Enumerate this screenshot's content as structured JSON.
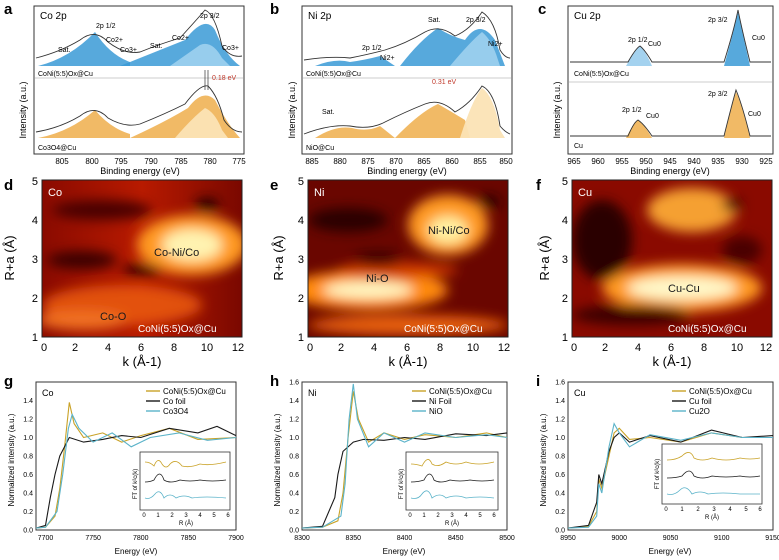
{
  "panels": {
    "a": {
      "letter": "a",
      "tag": "Co 2p",
      "ylabel": "Intensity (a.u.)",
      "xlabel": "Binding energy (eV)",
      "ticks": [
        "805",
        "800",
        "795",
        "790",
        "785",
        "780",
        "775"
      ],
      "top_sample": "CoNi(5:5)Ox@Cu",
      "bottom_sample": "Co3O4@Cu",
      "shift": "0.18 eV",
      "peaks": [
        "Sat.",
        "2p 1/2",
        "Co2+",
        "Co3+",
        "Sat.",
        "Co2+",
        "2p 3/2",
        "Co3+"
      ]
    },
    "b": {
      "letter": "b",
      "tag": "Ni 2p",
      "ylabel": "Intensity (a.u.)",
      "xlabel": "Binding energy (eV)",
      "ticks": [
        "885",
        "880",
        "875",
        "870",
        "865",
        "860",
        "855",
        "850"
      ],
      "top_sample": "CoNi(5:5)Ox@Cu",
      "bottom_sample": "NiO@Cu",
      "shift": "0.31 eV",
      "peaks": [
        "Sat.",
        "2p 1/2",
        "Ni2+",
        "Sat.",
        "2p 3/2",
        "Ni2+"
      ]
    },
    "c": {
      "letter": "c",
      "tag": "Cu 2p",
      "ylabel": "Intensity (a.u.)",
      "xlabel": "Binding energy (eV)",
      "ticks": [
        "965",
        "960",
        "955",
        "950",
        "945",
        "940",
        "935",
        "930",
        "925"
      ],
      "top_sample": "CoNi(5:5)Ox@Cu",
      "bottom_sample": "Cu",
      "peaks": [
        "2p 1/2",
        "Cu0",
        "2p 3/2",
        "Cu0"
      ]
    },
    "d": {
      "letter": "d",
      "tag": "Co",
      "ann1": "Co-Ni/Co",
      "ann2": "Co-O",
      "sample": "CoNi(5:5)Ox@Cu"
    },
    "e": {
      "letter": "e",
      "tag": "Ni",
      "ann1": "Ni-Ni/Co",
      "ann2": "Ni-O",
      "sample": "CoNi(5:5)Ox@Cu"
    },
    "f": {
      "letter": "f",
      "tag": "Cu",
      "ann1": "Cu-Cu",
      "sample": "CoNi(5:5)Ox@Cu"
    },
    "g": {
      "letter": "g",
      "tag": "Co",
      "ylabel": "Normalized intensity (a.u.)",
      "xlabel": "Energy (eV)",
      "legend": [
        "CoNi(5:5)Ox@Cu",
        "Co foil",
        "Co3O4"
      ]
    },
    "h": {
      "letter": "h",
      "tag": "Ni",
      "ylabel": "Normalized intensity (a.u.)",
      "xlabel": "Energy (eV)",
      "legend": [
        "CoNi(5:5)Ox@Cu",
        "Ni Foil",
        "NiO"
      ]
    },
    "i": {
      "letter": "i",
      "tag": "Cu",
      "ylabel": "Normalized intensity (a.u.)",
      "xlabel": "Energy (eV)",
      "legend": [
        "CoNi(5:5)Ox@Cu",
        "Cu foil",
        "Cu2O"
      ]
    }
  },
  "wt_axes": {
    "ylabel": "R+a (Å)",
    "xlabel": "k (Å-1)",
    "xticks": [
      "0",
      "2",
      "4",
      "6",
      "8",
      "10",
      "12"
    ],
    "yticks": [
      "1",
      "2",
      "3",
      "4",
      "5"
    ]
  },
  "inset": {
    "ylabel": "FT of k²c(k)",
    "xlabel": "R (Å)",
    "ticks": [
      "0",
      "1",
      "2",
      "3",
      "4",
      "5",
      "6"
    ]
  },
  "colors": {
    "sample": "#c9a227",
    "foil": "#1a1a1a",
    "oxide": "#5bb3c9",
    "blue_fill": "#3a9ad6",
    "orange_fill": "#f0b355"
  },
  "chart_data": [
    {
      "panel": "a",
      "type": "line",
      "title": "Co 2p",
      "xlabel": "Binding energy (eV)",
      "ylabel": "Intensity (a.u.)",
      "xlim": [
        805,
        775
      ],
      "series": [
        {
          "name": "CoNi(5:5)Ox@Cu",
          "x": [
            805,
            802,
            800,
            797,
            795,
            792,
            789,
            786,
            783,
            781,
            780,
            778,
            775
          ],
          "values": [
            0.3,
            0.45,
            0.55,
            0.7,
            0.55,
            0.45,
            0.5,
            0.6,
            0.8,
            1.0,
            0.95,
            0.5,
            0.35
          ]
        },
        {
          "name": "Co3O4@Cu",
          "x": [
            805,
            802,
            800,
            797,
            795,
            792,
            789,
            786,
            783,
            781,
            780,
            778,
            775
          ],
          "values": [
            0.2,
            0.3,
            0.35,
            0.55,
            0.4,
            0.3,
            0.35,
            0.45,
            0.6,
            0.85,
            0.9,
            0.4,
            0.2
          ]
        }
      ]
    },
    {
      "panel": "b",
      "type": "line",
      "title": "Ni 2p",
      "xlabel": "Binding energy (eV)",
      "ylabel": "Intensity (a.u.)",
      "xlim": [
        885,
        850
      ],
      "series": [
        {
          "name": "CoNi(5:5)Ox@Cu",
          "x": [
            885,
            880,
            876,
            873,
            870,
            866,
            862,
            858,
            856,
            854,
            850
          ],
          "values": [
            0.3,
            0.4,
            0.4,
            0.5,
            0.45,
            0.6,
            0.9,
            0.8,
            0.95,
            0.6,
            0.35
          ]
        },
        {
          "name": "NiO@Cu",
          "x": [
            885,
            880,
            876,
            873,
            870,
            866,
            862,
            858,
            856,
            854,
            850
          ],
          "values": [
            0.2,
            0.35,
            0.3,
            0.4,
            0.3,
            0.45,
            0.75,
            0.55,
            0.9,
            0.5,
            0.2
          ]
        }
      ]
    },
    {
      "panel": "c",
      "type": "line",
      "title": "Cu 2p",
      "xlabel": "Binding energy (eV)",
      "ylabel": "Intensity (a.u.)",
      "xlim": [
        965,
        925
      ],
      "series": [
        {
          "name": "CoNi(5:5)Ox@Cu",
          "x": [
            965,
            955,
            952,
            949,
            940,
            934,
            932,
            930,
            925
          ],
          "values": [
            0.35,
            0.35,
            0.55,
            0.4,
            0.4,
            0.4,
            1.0,
            0.45,
            0.4
          ]
        },
        {
          "name": "Cu",
          "x": [
            965,
            955,
            952,
            949,
            940,
            934,
            932,
            930,
            925
          ],
          "values": [
            0.2,
            0.2,
            0.4,
            0.25,
            0.25,
            0.25,
            0.85,
            0.3,
            0.25
          ]
        }
      ]
    },
    {
      "panel": "d",
      "type": "heatmap",
      "title": "Co",
      "xlabel": "k (Å-1)",
      "ylabel": "R+a (Å)",
      "xlim": [
        0,
        12
      ],
      "ylim": [
        1,
        5
      ]
    },
    {
      "panel": "e",
      "type": "heatmap",
      "title": "Ni",
      "xlabel": "k (Å-1)",
      "ylabel": "R+a (Å)",
      "xlim": [
        0,
        12
      ],
      "ylim": [
        1,
        5
      ]
    },
    {
      "panel": "f",
      "type": "heatmap",
      "title": "Cu",
      "xlabel": "k (Å-1)",
      "ylabel": "R+a (Å)",
      "xlim": [
        0,
        12
      ],
      "ylim": [
        1,
        5
      ]
    },
    {
      "panel": "g",
      "type": "line",
      "title": "Co",
      "xlabel": "Energy (eV)",
      "ylabel": "Normalized intensity (a.u.)",
      "xlim": [
        7690,
        7900
      ],
      "ylim": [
        0,
        1.6
      ],
      "xticks": [
        "7700",
        "7750",
        "7800",
        "7850",
        "7900"
      ],
      "yticks": [
        "0.0",
        "0.2",
        "0.4",
        "0.6",
        "0.8",
        "1.0",
        "1.2",
        "1.4"
      ],
      "series": [
        {
          "name": "CoNi(5:5)Ox@Cu",
          "x": [
            7690,
            7700,
            7710,
            7715,
            7720,
            7725,
            7730,
            7740,
            7760,
            7780,
            7800,
            7830,
            7860,
            7900
          ],
          "values": [
            0.02,
            0.03,
            0.15,
            0.45,
            0.9,
            1.38,
            1.15,
            1.0,
            1.05,
            0.95,
            1.02,
            1.1,
            0.98,
            1.0
          ]
        },
        {
          "name": "Co foil",
          "x": [
            7690,
            7700,
            7705,
            7710,
            7715,
            7725,
            7740,
            7760,
            7780,
            7800,
            7830,
            7860,
            7880,
            7900
          ],
          "values": [
            0.02,
            0.05,
            0.35,
            0.6,
            0.8,
            1.0,
            0.95,
            0.98,
            1.02,
            1.0,
            1.1,
            1.05,
            1.12,
            1.02
          ]
        },
        {
          "name": "Co3O4",
          "x": [
            7690,
            7700,
            7712,
            7718,
            7724,
            7728,
            7735,
            7750,
            7770,
            7790,
            7810,
            7840,
            7870,
            7900
          ],
          "values": [
            0.02,
            0.03,
            0.2,
            0.6,
            1.1,
            1.25,
            1.1,
            0.95,
            1.05,
            0.9,
            1.0,
            1.05,
            0.97,
            1.0
          ]
        }
      ]
    },
    {
      "panel": "h",
      "type": "line",
      "title": "Ni",
      "xlabel": "Energy (eV)",
      "ylabel": "Normalized intensity (a.u.)",
      "xlim": [
        8300,
        8500
      ],
      "ylim": [
        0,
        1.6
      ],
      "xticks": [
        "8300",
        "8350",
        "8400",
        "8450",
        "8500"
      ],
      "yticks": [
        "0.0",
        "0.2",
        "0.4",
        "0.6",
        "0.8",
        "1.0",
        "1.2",
        "1.4",
        "1.6"
      ],
      "series": [
        {
          "name": "CoNi(5:5)Ox@Cu",
          "x": [
            8300,
            8320,
            8335,
            8340,
            8345,
            8350,
            8355,
            8365,
            8380,
            8400,
            8420,
            8450,
            8480,
            8500
          ],
          "values": [
            0.02,
            0.03,
            0.1,
            0.4,
            1.0,
            1.5,
            1.2,
            0.95,
            1.05,
            0.98,
            1.03,
            1.0,
            1.05,
            1.0
          ]
        },
        {
          "name": "Ni Foil",
          "x": [
            8300,
            8320,
            8332,
            8335,
            8340,
            8350,
            8360,
            8380,
            8400,
            8420,
            8450,
            8480,
            8500
          ],
          "values": [
            0.02,
            0.04,
            0.35,
            0.6,
            0.85,
            0.95,
            0.98,
            0.97,
            1.0,
            0.98,
            1.04,
            1.02,
            1.05
          ]
        },
        {
          "name": "NiO",
          "x": [
            8300,
            8320,
            8338,
            8342,
            8346,
            8350,
            8354,
            8365,
            8380,
            8400,
            8420,
            8450,
            8480,
            8500
          ],
          "values": [
            0.02,
            0.03,
            0.15,
            0.5,
            1.2,
            1.58,
            1.2,
            0.9,
            1.05,
            0.95,
            1.05,
            1.0,
            1.03,
            1.0
          ]
        }
      ]
    },
    {
      "panel": "i",
      "type": "line",
      "title": "Cu",
      "xlabel": "Energy (eV)",
      "ylabel": "Normalized intensity (a.u.)",
      "xlim": [
        8950,
        9150
      ],
      "ylim": [
        0,
        1.6
      ],
      "xticks": [
        "8950",
        "9000",
        "9050",
        "9100",
        "9150"
      ],
      "yticks": [
        "0.0",
        "0.2",
        "0.4",
        "0.6",
        "0.8",
        "1.0",
        "1.2",
        "1.4",
        "1.6"
      ],
      "series": [
        {
          "name": "CoNi(5:5)Ox@Cu",
          "x": [
            8950,
            8970,
            8978,
            8980,
            8983,
            8990,
            8995,
            9000,
            9010,
            9030,
            9060,
            9090,
            9120,
            9150
          ],
          "values": [
            0.02,
            0.04,
            0.2,
            0.55,
            0.45,
            0.8,
            1.05,
            1.1,
            0.98,
            1.0,
            0.95,
            1.05,
            1.0,
            1.0
          ]
        },
        {
          "name": "Cu foil",
          "x": [
            8950,
            8970,
            8978,
            8980,
            8983,
            8990,
            8995,
            9000,
            9010,
            9030,
            9060,
            9090,
            9120,
            9150
          ],
          "values": [
            0.02,
            0.05,
            0.3,
            0.6,
            0.5,
            0.85,
            1.0,
            1.05,
            0.95,
            1.02,
            0.95,
            1.08,
            1.0,
            1.02
          ]
        },
        {
          "name": "Cu2O",
          "x": [
            8950,
            8970,
            8978,
            8980,
            8983,
            8990,
            8995,
            9000,
            9010,
            9030,
            9060,
            9090,
            9120,
            9150
          ],
          "values": [
            0.02,
            0.03,
            0.15,
            0.5,
            0.4,
            0.9,
            1.15,
            1.05,
            0.9,
            1.03,
            0.97,
            1.05,
            1.0,
            1.0
          ]
        }
      ]
    }
  ]
}
